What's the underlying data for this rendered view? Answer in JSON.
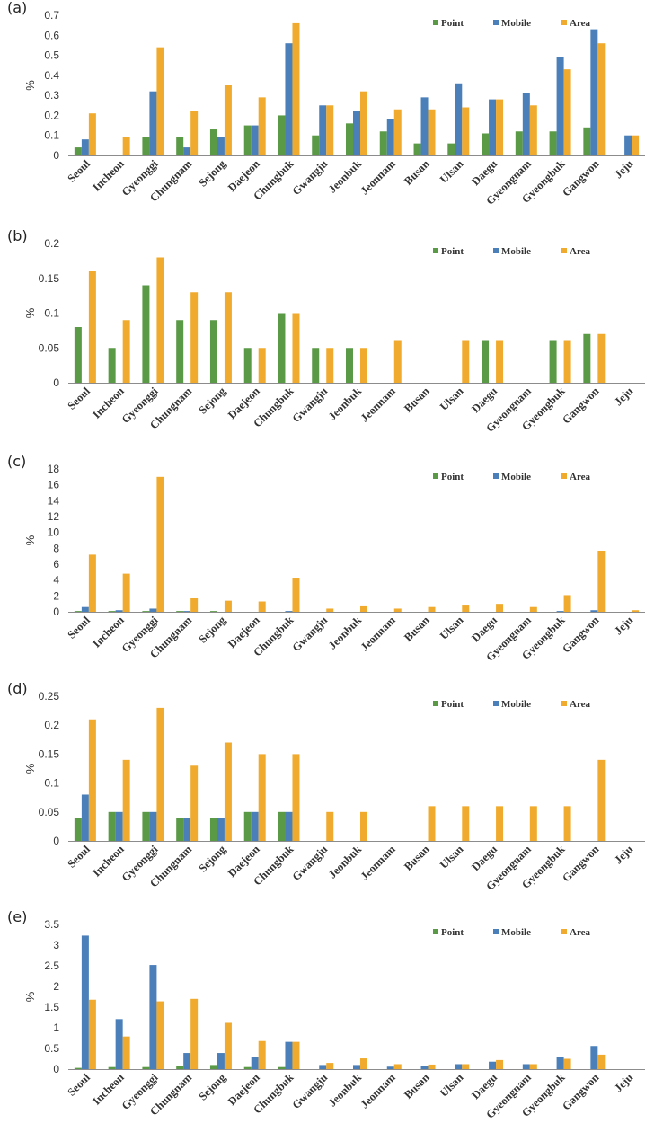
{
  "chart_data": [
    {
      "panel": "(a)",
      "type": "bar",
      "ylabel": "%",
      "ylim": [
        0,
        0.7
      ],
      "yticks": [
        "0",
        "0.1",
        "0.2",
        "0.3",
        "0.4",
        "0.5",
        "0.6",
        "0.7"
      ],
      "categories": [
        "Seoul",
        "Incheon",
        "Gyeonggi",
        "Chungnam",
        "Sejong",
        "Daejeon",
        "Chungbuk",
        "Gwangju",
        "Jeonbuk",
        "Jeonnam",
        "Busan",
        "Ulsan",
        "Daegu",
        "Gyeongnam",
        "Gyeongbuk",
        "Gangwon",
        "Jeju"
      ],
      "series": [
        {
          "name": "Point",
          "values": [
            0.04,
            0,
            0.09,
            0.09,
            0.13,
            0.15,
            0.2,
            0.1,
            0.16,
            0.12,
            0.06,
            0.06,
            0.11,
            0.12,
            0.12,
            0.14,
            0
          ]
        },
        {
          "name": "Mobile",
          "values": [
            0.08,
            0,
            0.32,
            0.04,
            0.09,
            0.15,
            0.56,
            0.25,
            0.22,
            0.18,
            0.29,
            0.36,
            0.28,
            0.31,
            0.49,
            0.63,
            0.1
          ]
        },
        {
          "name": "Area",
          "values": [
            0.21,
            0.09,
            0.54,
            0.22,
            0.35,
            0.29,
            0.66,
            0.25,
            0.32,
            0.23,
            0.23,
            0.24,
            0.28,
            0.25,
            0.43,
            0.56,
            0.1
          ]
        }
      ]
    },
    {
      "panel": "(b)",
      "type": "bar",
      "ylabel": "%",
      "ylim": [
        0,
        0.2
      ],
      "yticks": [
        "0",
        "0.05",
        "0.1",
        "0.15",
        "0.2"
      ],
      "categories": [
        "Seoul",
        "Incheon",
        "Gyeonggi",
        "Chungnam",
        "Sejong",
        "Daejeon",
        "Chungbuk",
        "Gwangju",
        "Jeonbuk",
        "Jeonnam",
        "Busan",
        "Ulsan",
        "Daegu",
        "Gyeongnam",
        "Gyeongbuk",
        "Gangwon",
        "Jeju"
      ],
      "series": [
        {
          "name": "Point",
          "values": [
            0.08,
            0.05,
            0.14,
            0.09,
            0.09,
            0.05,
            0.1,
            0.05,
            0.05,
            0,
            0,
            0,
            0.06,
            0,
            0.06,
            0.07,
            0
          ]
        },
        {
          "name": "Mobile",
          "values": [
            0,
            0,
            0,
            0,
            0,
            0,
            0,
            0,
            0,
            0,
            0,
            0,
            0,
            0,
            0,
            0,
            0
          ]
        },
        {
          "name": "Area",
          "values": [
            0.16,
            0.09,
            0.18,
            0.13,
            0.13,
            0.05,
            0.1,
            0.05,
            0.05,
            0.06,
            0,
            0.06,
            0.06,
            0,
            0.06,
            0.07,
            0
          ]
        }
      ]
    },
    {
      "panel": "(c)",
      "type": "bar",
      "ylabel": "%",
      "ylim": [
        0,
        18
      ],
      "yticks": [
        "0",
        "2",
        "4",
        "6",
        "8",
        "10",
        "12",
        "14",
        "16",
        "18"
      ],
      "categories": [
        "Seoul",
        "Incheon",
        "Gyeonggi",
        "Chungnam",
        "Sejong",
        "Daejeon",
        "Chungbuk",
        "Gwangju",
        "Jeonbuk",
        "Jeonnam",
        "Busan",
        "Ulsan",
        "Daegu",
        "Gyeongnam",
        "Gyeongbuk",
        "Gangwon",
        "Jeju"
      ],
      "series": [
        {
          "name": "Point",
          "values": [
            0.1,
            0.1,
            0.1,
            0.1,
            0.1,
            0,
            0,
            0,
            0,
            0,
            0,
            0,
            0,
            0,
            0,
            0,
            0
          ]
        },
        {
          "name": "Mobile",
          "values": [
            0.6,
            0.2,
            0.4,
            0.1,
            0,
            0,
            0.1,
            0,
            0,
            0,
            0,
            0,
            0,
            0,
            0.1,
            0.2,
            0
          ]
        },
        {
          "name": "Area",
          "values": [
            7.2,
            4.8,
            17.0,
            1.7,
            1.4,
            1.3,
            4.3,
            0.4,
            0.8,
            0.4,
            0.6,
            0.9,
            1.0,
            0.6,
            2.1,
            7.7,
            0.2
          ]
        }
      ]
    },
    {
      "panel": "(d)",
      "type": "bar",
      "ylabel": "%",
      "ylim": [
        0,
        0.25
      ],
      "yticks": [
        "0",
        "0.05",
        "0.1",
        "0.15",
        "0.2",
        "0.25"
      ],
      "categories": [
        "Seoul",
        "Incheon",
        "Gyeonggi",
        "Chungnam",
        "Sejong",
        "Daejeon",
        "Chungbuk",
        "Gwangju",
        "Jeonbuk",
        "Jeonnam",
        "Busan",
        "Ulsan",
        "Daegu",
        "Gyeongnam",
        "Gyeongbuk",
        "Gangwon",
        "Jeju"
      ],
      "series": [
        {
          "name": "Point",
          "values": [
            0.04,
            0.05,
            0.05,
            0.04,
            0.04,
            0.05,
            0.05,
            0,
            0,
            0,
            0,
            0,
            0,
            0,
            0,
            0,
            0
          ]
        },
        {
          "name": "Mobile",
          "values": [
            0.08,
            0.05,
            0.05,
            0.04,
            0.04,
            0.05,
            0.05,
            0,
            0,
            0,
            0,
            0,
            0,
            0,
            0,
            0,
            0
          ]
        },
        {
          "name": "Area",
          "values": [
            0.21,
            0.14,
            0.23,
            0.13,
            0.17,
            0.15,
            0.15,
            0.05,
            0.05,
            0,
            0.06,
            0.06,
            0.06,
            0.06,
            0.06,
            0.14,
            0
          ]
        }
      ]
    },
    {
      "panel": "(e)",
      "type": "bar",
      "ylabel": "%",
      "ylim": [
        0,
        3.5
      ],
      "yticks": [
        "0",
        "0.5",
        "1",
        "1.5",
        "2",
        "2.5",
        "3",
        "3.5"
      ],
      "categories": [
        "Seoul",
        "Incheon",
        "Gyeonggi",
        "Chungnam",
        "Sejong",
        "Daejeon",
        "Chungbuk",
        "Gwangju",
        "Jeonbuk",
        "Jeonnam",
        "Busan",
        "Ulsan",
        "Daegu",
        "Gyeongnam",
        "Gyeongbuk",
        "Gangwon",
        "Jeju"
      ],
      "series": [
        {
          "name": "Point",
          "values": [
            0.03,
            0.05,
            0.05,
            0.08,
            0.1,
            0.05,
            0.05,
            0,
            0,
            0,
            0,
            0,
            0,
            0,
            0,
            0,
            0
          ]
        },
        {
          "name": "Mobile",
          "values": [
            3.23,
            1.21,
            2.52,
            0.39,
            0.39,
            0.29,
            0.66,
            0.1,
            0.1,
            0.06,
            0.07,
            0.12,
            0.18,
            0.12,
            0.3,
            0.56,
            0
          ]
        },
        {
          "name": "Area",
          "values": [
            1.68,
            0.79,
            1.64,
            1.7,
            1.12,
            0.68,
            0.66,
            0.15,
            0.26,
            0.12,
            0.11,
            0.12,
            0.22,
            0.12,
            0.25,
            0.35,
            0
          ]
        }
      ]
    }
  ],
  "legend": {
    "point": "Point",
    "mobile": "Mobile",
    "area": "Area"
  },
  "colors": {
    "point": "#5a9a47",
    "mobile": "#4a7fba",
    "area": "#f0ab2e",
    "axis": "#8c8c8c",
    "text": "#333333"
  }
}
